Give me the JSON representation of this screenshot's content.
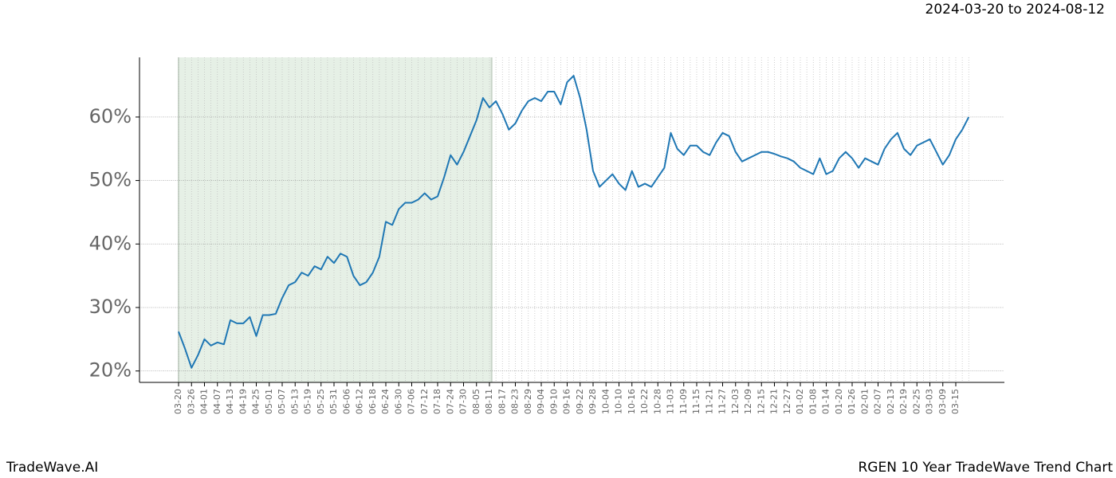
{
  "chart_data": {
    "type": "line",
    "title": "RGEN 10 Year TradeWave Trend Chart",
    "brand": "TradeWave.AI",
    "range_label": "2024-03-20 to 2024-08-12",
    "shade_color": "#e6f0e6",
    "categories": [
      "03-20",
      null,
      "03-26",
      null,
      "04-01",
      null,
      "04-07",
      null,
      "04-13",
      null,
      "04-19",
      null,
      "04-25",
      null,
      "05-01",
      null,
      "05-07",
      null,
      "05-13",
      null,
      "05-19",
      null,
      "05-25",
      null,
      "05-31",
      null,
      "06-06",
      null,
      "06-12",
      null,
      "06-18",
      null,
      "06-24",
      null,
      "06-30",
      null,
      "07-06",
      null,
      "07-12",
      null,
      "07-18",
      null,
      "07-24",
      null,
      "07-30",
      null,
      "08-05",
      null,
      "08-11",
      null,
      "08-17",
      null,
      "08-23",
      null,
      "08-29",
      null,
      "09-04",
      null,
      "09-10",
      null,
      "09-16",
      null,
      "09-22",
      null,
      "09-28",
      null,
      "10-04",
      null,
      "10-10",
      null,
      "10-16",
      null,
      "10-22",
      null,
      "10-28",
      null,
      "11-03",
      null,
      "11-09",
      null,
      "11-15",
      null,
      "11-21",
      null,
      "11-27",
      null,
      "12-03",
      null,
      "12-09",
      null,
      "12-15",
      null,
      "12-21",
      null,
      "12-27",
      null,
      "01-02",
      null,
      "01-08",
      null,
      "01-14",
      null,
      "01-20",
      null,
      "01-26",
      null,
      "02-01",
      null,
      "02-07",
      null,
      "02-13",
      null,
      "02-19",
      null,
      "02-25",
      null,
      "03-03",
      null,
      "03-09",
      null,
      "03-15",
      null,
      null
    ],
    "series": [
      {
        "name": "RGEN",
        "color": "#1f77b4",
        "values": [
          26.2,
          23.5,
          20.5,
          22.5,
          25,
          24,
          24.5,
          24.2,
          28,
          27.5,
          27.5,
          28.5,
          25.5,
          28.8,
          28.8,
          29,
          31.5,
          33.5,
          34,
          35.5,
          35,
          36.5,
          36,
          38,
          37,
          38.5,
          38,
          35,
          33.5,
          34,
          35.5,
          38,
          43.5,
          43,
          45.5,
          46.5,
          46.5,
          47,
          48,
          47,
          47.5,
          50.5,
          54,
          52.5,
          54.5,
          57,
          59.5,
          63,
          61.5,
          62.5,
          60.5,
          58,
          59,
          61,
          62.5,
          63,
          62.5,
          64,
          64,
          62,
          65.5,
          66.5,
          63,
          58,
          51.5,
          49,
          50,
          51,
          49.5,
          48.5,
          51.5,
          49,
          49.5,
          49,
          50.5,
          52,
          57.5,
          55,
          54,
          55.5,
          55.5,
          54.5,
          54,
          56,
          57.5,
          57,
          54.5,
          53,
          53.5,
          54,
          54.5,
          54.5,
          54.2,
          53.8,
          53.5,
          53,
          52,
          51.5,
          51,
          53.5,
          51,
          51.5,
          53.5,
          54.5,
          53.5,
          52,
          53.5,
          53,
          52.5,
          55,
          56.5,
          57.5,
          55,
          54,
          55.5,
          56,
          56.5,
          54.5,
          52.5,
          54,
          56.5,
          58,
          60
        ]
      }
    ],
    "ylim": [
      18.2,
      69.4
    ],
    "yticks": [
      {
        "value": 20,
        "label": "20%"
      },
      {
        "value": 30,
        "label": "30%"
      },
      {
        "value": 40,
        "label": "40%"
      },
      {
        "value": 50,
        "label": "50%"
      },
      {
        "value": 60,
        "label": "60%"
      }
    ],
    "grid": true
  }
}
